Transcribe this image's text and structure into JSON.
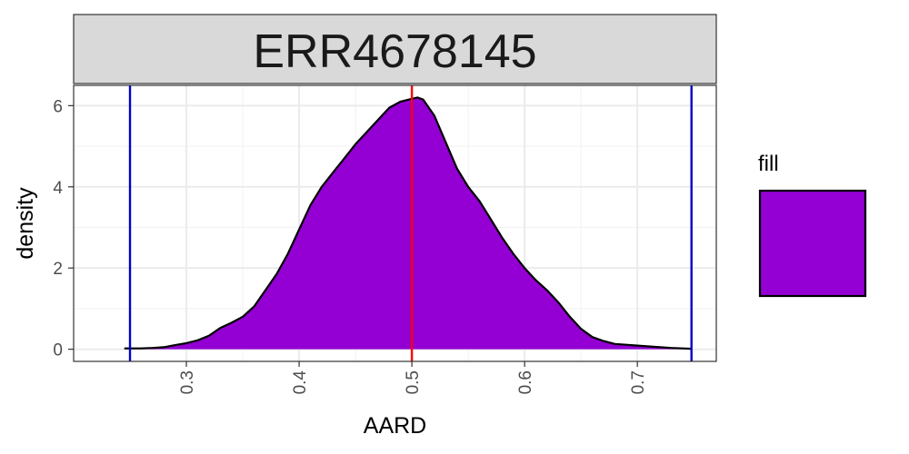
{
  "chart_data": {
    "type": "area",
    "title": "ERR4678145",
    "xlabel": "AARD",
    "ylabel": "density",
    "xlim": [
      0.2,
      0.77
    ],
    "ylim": [
      -0.3,
      6.5
    ],
    "x_ticks": [
      "0.3",
      "0.4",
      "0.5",
      "0.6",
      "0.7"
    ],
    "y_ticks": [
      "0",
      "2",
      "4",
      "6"
    ],
    "grid": true,
    "legend": {
      "title": "fill",
      "position": "right"
    },
    "fill_color": "#9400D3",
    "vlines": [
      {
        "x": 0.25,
        "color": "#0000CC"
      },
      {
        "x": 0.5,
        "color": "#FF0000"
      },
      {
        "x": 0.748,
        "color": "#0000CC"
      }
    ],
    "series": [
      {
        "x": [
          0.245,
          0.25,
          0.26,
          0.27,
          0.28,
          0.29,
          0.3,
          0.31,
          0.32,
          0.33,
          0.34,
          0.35,
          0.36,
          0.37,
          0.38,
          0.39,
          0.4,
          0.41,
          0.42,
          0.43,
          0.44,
          0.45,
          0.46,
          0.47,
          0.48,
          0.49,
          0.5,
          0.505,
          0.51,
          0.52,
          0.53,
          0.54,
          0.55,
          0.56,
          0.57,
          0.58,
          0.59,
          0.6,
          0.61,
          0.62,
          0.63,
          0.64,
          0.65,
          0.66,
          0.67,
          0.68,
          0.69,
          0.7,
          0.71,
          0.72,
          0.73,
          0.74,
          0.748
        ],
        "y": [
          0.02,
          0.02,
          0.02,
          0.03,
          0.05,
          0.1,
          0.15,
          0.22,
          0.33,
          0.52,
          0.65,
          0.8,
          1.05,
          1.45,
          1.85,
          2.35,
          2.95,
          3.55,
          4.0,
          4.35,
          4.7,
          5.05,
          5.35,
          5.65,
          5.95,
          6.1,
          6.17,
          6.2,
          6.15,
          5.75,
          5.1,
          4.45,
          4.0,
          3.65,
          3.2,
          2.75,
          2.35,
          2.0,
          1.7,
          1.45,
          1.15,
          0.8,
          0.5,
          0.3,
          0.2,
          0.13,
          0.11,
          0.09,
          0.07,
          0.05,
          0.03,
          0.02,
          0.01
        ]
      }
    ]
  }
}
